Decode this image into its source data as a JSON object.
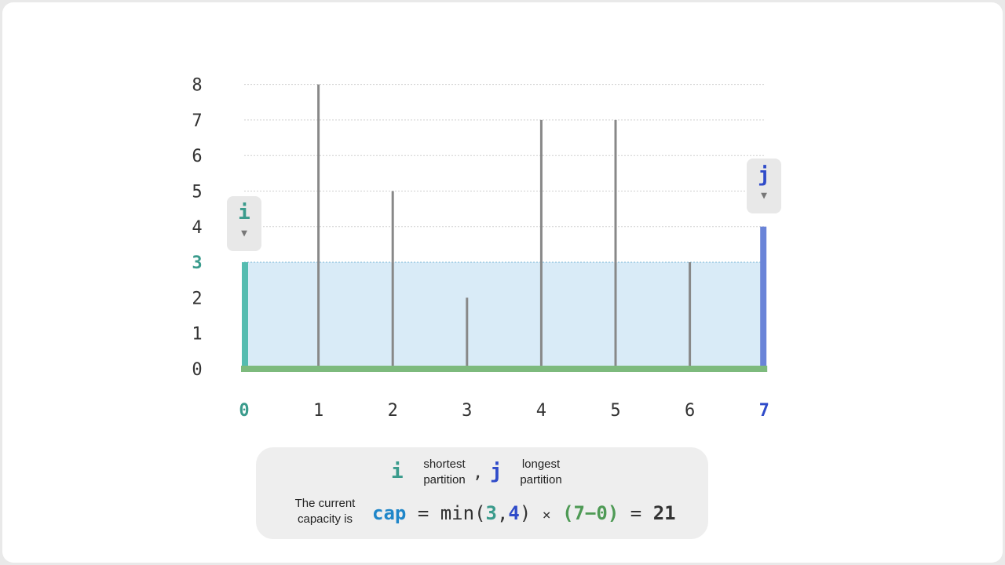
{
  "chart_data": {
    "type": "bar",
    "x": [
      "0",
      "1",
      "2",
      "3",
      "4",
      "5",
      "6",
      "7"
    ],
    "heights": [
      3,
      8,
      5,
      2,
      7,
      7,
      3,
      4
    ],
    "y_ticks": [
      "0",
      "1",
      "2",
      "3",
      "4",
      "5",
      "6",
      "7",
      "8"
    ],
    "ylim": [
      0,
      8
    ],
    "highlight_y": 3,
    "i_index": 0,
    "j_index": 7,
    "water_level": 3,
    "grid": true
  },
  "pointers": {
    "i": {
      "letter": "i",
      "arrow": "▼"
    },
    "j": {
      "letter": "j",
      "arrow": "▼"
    }
  },
  "legend": {
    "i_letter": "i",
    "i_text_1": "shortest",
    "i_text_2": "partition",
    "comma": ",",
    "j_letter": "j",
    "j_text_1": "longest",
    "j_text_2": "partition",
    "caption_1": "The current",
    "caption_2": "capacity is"
  },
  "formula": {
    "cap": "cap",
    "eq1": "=",
    "min_open": "min(",
    "h_i": "3",
    "comma": ",",
    "h_j": "4",
    "close": ")",
    "times": "×",
    "width": "(7−0)",
    "eq2": "=",
    "result": "21"
  },
  "colors": {
    "i_color": "#3a9b8c",
    "j_color": "#2f4bc9",
    "water": "#d9ebf7",
    "base": "#7dba7d",
    "bar_i": "#55bcb0",
    "bar_j": "#6a84d8",
    "bar": "#888888",
    "cap": "#1f86c9",
    "width": "#4e9a55"
  }
}
